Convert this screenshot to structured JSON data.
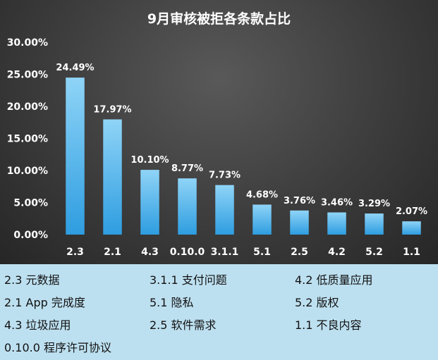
{
  "chart_data": {
    "type": "bar",
    "title": "9月审核被拒各条款占比",
    "categories": [
      "2.3",
      "2.1",
      "4.3",
      "0.10.0",
      "3.1.1",
      "5.1",
      "2.5",
      "4.2",
      "5.2",
      "1.1"
    ],
    "values": [
      24.49,
      17.97,
      10.1,
      8.77,
      7.73,
      4.68,
      3.76,
      3.46,
      3.29,
      2.07
    ],
    "data_labels": [
      "24.49%",
      "17.97%",
      "10.10%",
      "8.77%",
      "7.73%",
      "4.68%",
      "3.76%",
      "3.46%",
      "3.29%",
      "2.07%"
    ],
    "ylim": [
      0,
      30
    ],
    "yticks": [
      "0.00%",
      "5.00%",
      "10.00%",
      "15.00%",
      "20.00%",
      "25.00%",
      "30.00%"
    ],
    "grid": false,
    "legend_position": "bottom",
    "colors": {
      "bar_top": "#8fd4f7",
      "bar_bottom": "#2e9de0",
      "text": "#ffffff",
      "legend_bg": "#bde0f0"
    }
  },
  "legend_notes": [
    "2.3 元数据",
    "3.1.1 支付问题",
    "4.2 低质量应用",
    "2.1 App 完成度",
    "5.1 隐私",
    "5.2 版权",
    "4.3 垃圾应用",
    "2.5 软件需求",
    "1.1 不良内容",
    "0.10.0 程序许可协议"
  ]
}
